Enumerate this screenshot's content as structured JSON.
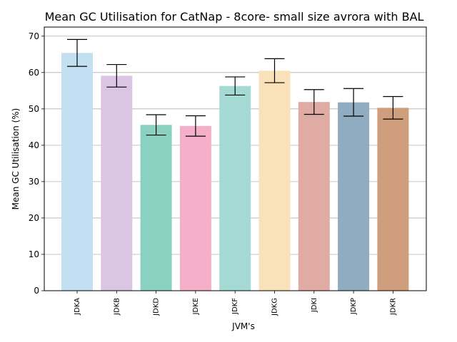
{
  "chart_data": {
    "type": "bar",
    "title": "Mean GC Utilisation for CatNap - 8core- small size avrora with BAL",
    "xlabel": "JVM's",
    "ylabel": "Mean GC Utilisation (%)",
    "ylim": [
      0,
      72.5
    ],
    "yticks": [
      0,
      10,
      20,
      30,
      40,
      50,
      60,
      70
    ],
    "grid": "horizontal",
    "categories": [
      "JDKA",
      "JDKB",
      "JDKD",
      "JDKE",
      "JDKF",
      "JDKG",
      "JDKI",
      "JDKP",
      "JDKR"
    ],
    "values": [
      65.4,
      59.1,
      45.6,
      45.3,
      56.3,
      60.5,
      51.9,
      51.8,
      50.3
    ],
    "errors": [
      3.7,
      3.1,
      2.8,
      2.8,
      2.5,
      3.3,
      3.4,
      3.8,
      3.1
    ],
    "colors": [
      "#c2e0f2",
      "#dbc5e5",
      "#8ad1c2",
      "#f5afc8",
      "#a4dad3",
      "#f9e1b9",
      "#e0aba3",
      "#8facc1",
      "#cf9f7d"
    ]
  }
}
